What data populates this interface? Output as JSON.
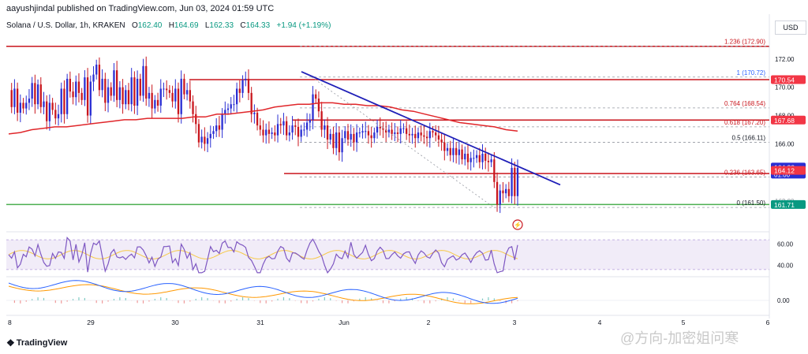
{
  "header": {
    "publisher": "aayushjindal published on TradingView.com, Jun 03, 2024 01:59 UTC"
  },
  "symbol": {
    "title": "Solana / U.S. Dollar, 1h, KRAKEN",
    "open_label": "O",
    "open": "162.40",
    "high_label": "H",
    "high": "164.69",
    "low_label": "L",
    "low": "162.33",
    "close_label": "C",
    "close": "164.33",
    "change": "+1.94 (+1.19%)"
  },
  "currency": "USD",
  "footer": {
    "logo_text": "TradingView",
    "watermark": "@方向-加密姐问寒"
  },
  "colors": {
    "up": "#089981",
    "down": "#f23645",
    "candle_up": "#2a2ed3",
    "candle_down": "#c9161d",
    "ma": "#e0262a",
    "trend": "#1f1fb8",
    "support": "#4caf50",
    "rsi": "#7e57c2"
  },
  "chart_data": [
    {
      "type": "line",
      "subtype": "candlestick",
      "title": "Solana / U.S. Dollar, 1h, KRAKEN",
      "x_ticks": [
        "8",
        "29",
        "30",
        "31",
        "Jun",
        "2",
        "3",
        "4",
        "5",
        "6"
      ],
      "y_ticks": [
        172.0,
        170.0,
        168.0,
        166.0
      ],
      "ylim": [
        160.0,
        174.5
      ],
      "grid": false,
      "price_labels": [
        {
          "value": 170.54,
          "text": "170.54",
          "color": "#f23645"
        },
        {
          "value": 167.68,
          "text": "167.68",
          "color": "#f23645"
        },
        {
          "value": 164.33,
          "text": "164.33",
          "sub": "01:00",
          "color": "#2a2ed3"
        },
        {
          "value": 164.12,
          "text": "164.12",
          "color": "#f23645"
        },
        {
          "value": 161.71,
          "text": "161.71",
          "color": "#089981"
        }
      ],
      "fib_levels": [
        {
          "ratio": "1.236",
          "value": "172.90",
          "price": 172.9
        },
        {
          "ratio": "1",
          "value": "170.72",
          "price": 170.72
        },
        {
          "ratio": "0.764",
          "value": "168.54",
          "price": 168.54
        },
        {
          "ratio": "0.618",
          "value": "167.20",
          "price": 167.2
        },
        {
          "ratio": "0.5",
          "value": "166.11",
          "price": 166.11
        },
        {
          "ratio": "0.236",
          "value": "163.65",
          "price": 163.65
        },
        {
          "ratio": "0",
          "value": "161.50",
          "price": 161.5
        }
      ],
      "horizontal_lines": [
        172.9,
        170.54,
        167.68,
        163.9,
        161.71
      ],
      "cutoff_tick": "162.00",
      "series": [
        {
          "name": "price",
          "values": [
            169.8,
            168.6,
            169.9,
            168.2,
            168.9,
            168.5,
            168.9,
            169.2,
            170.3,
            168.8,
            170.2,
            168.6,
            169.0,
            167.6,
            168.9,
            168.4,
            167.8,
            168.1,
            169.9,
            168.1,
            170.6,
            169.7,
            169.3,
            170.4,
            169.6,
            169.1,
            170.7,
            168.0,
            170.4,
            170.9,
            171.6,
            169.8,
            170.6,
            168.9,
            170.0,
            169.4,
            171.2,
            169.1,
            170.0,
            168.8,
            169.8,
            168.8,
            170.7,
            168.7,
            170.6,
            169.4,
            171.5,
            169.2,
            169.6,
            168.5,
            169.1,
            168.7,
            169.9,
            169.9,
            169.8,
            169.6,
            169.0,
            169.9,
            168.1,
            170.6,
            169.5,
            169.8,
            169.0,
            168.1,
            167.4,
            166.1,
            166.5,
            166.0,
            166.4,
            166.7,
            166.9,
            167.3,
            167.0,
            168.1,
            168.4,
            168.5,
            168.8,
            168.8,
            169.9,
            169.6,
            170.5,
            170.6,
            169.6,
            168.1,
            168.2,
            167.3,
            167.0,
            166.6,
            167.0,
            166.7,
            166.8,
            166.6,
            167.4,
            167.3,
            167.6,
            166.6,
            166.8,
            167.3,
            167.2,
            166.5,
            167.0,
            167.0,
            167.5,
            167.7,
            169.5,
            169.2,
            168.3,
            167.0,
            167.3,
            166.3,
            166.7,
            165.7,
            166.8,
            165.4,
            166.4,
            166.9,
            166.3,
            166.7,
            166.1,
            166.8,
            166.8,
            166.9,
            166.9,
            166.6,
            166.4,
            166.8,
            167.2,
            167.1,
            167.0,
            166.8,
            167.0,
            166.7,
            166.8,
            166.7,
            167.1,
            167.1,
            166.7,
            166.6,
            166.7,
            166.4,
            166.8,
            166.6,
            166.5,
            166.4,
            166.9,
            166.8,
            166.6,
            166.3,
            166.1,
            165.5,
            165.7,
            165.2,
            165.7,
            165.2,
            165.6,
            164.9,
            165.3,
            164.7,
            165.0,
            165.0,
            165.2,
            164.7,
            165.3,
            164.8,
            164.7,
            164.9,
            163.3,
            161.7,
            162.7,
            162.5,
            162.8,
            162.3,
            164.3,
            162.3,
            164.3
          ]
        },
        {
          "name": "MA",
          "values": [
            166.7,
            166.8,
            167.0,
            167.1,
            167.2,
            167.2,
            167.3,
            167.4,
            167.5,
            167.6,
            167.7,
            167.7,
            167.8,
            167.8,
            167.8,
            167.8,
            167.9,
            167.9,
            168.1,
            168.1,
            168.2,
            168.3,
            168.4,
            168.6,
            168.7,
            168.8,
            168.8,
            168.9,
            168.9,
            168.8,
            168.8,
            168.7,
            168.7,
            168.6,
            168.4,
            168.3,
            168.1,
            167.9,
            167.7,
            167.5,
            167.4,
            167.3,
            167.2,
            167.0,
            166.9
          ]
        }
      ]
    },
    {
      "type": "line",
      "title": "RSI",
      "y_ticks": [
        60.0,
        40.0
      ],
      "ylim": [
        30,
        70
      ]
    },
    {
      "type": "line",
      "title": "MACD",
      "y_ticks": [
        0.0
      ]
    }
  ]
}
